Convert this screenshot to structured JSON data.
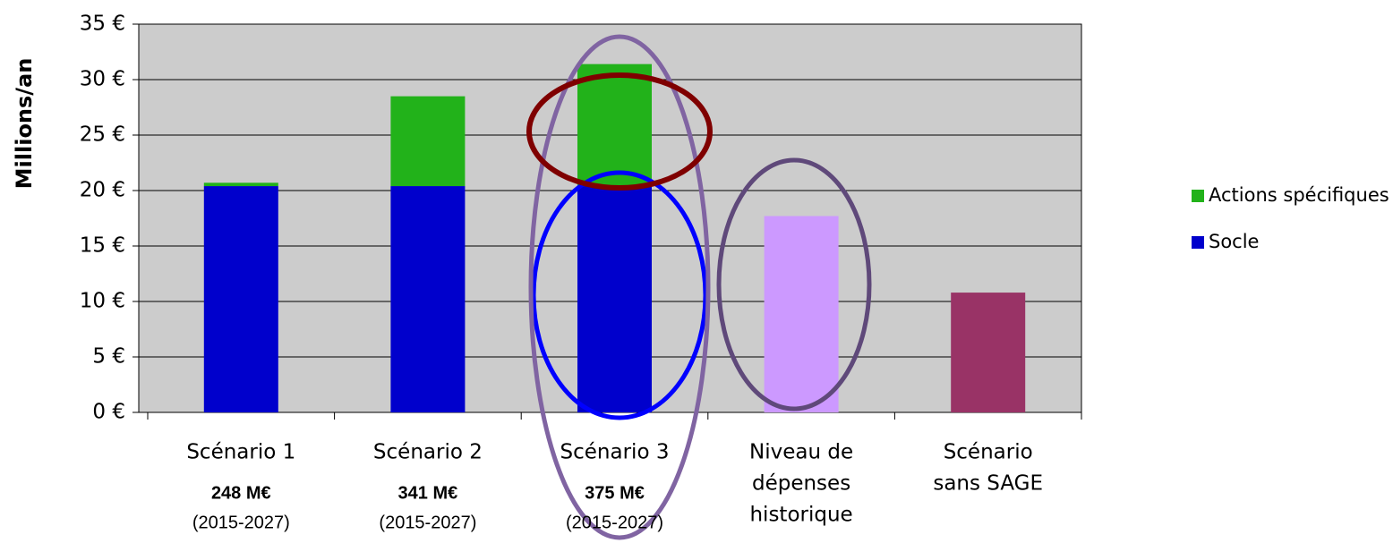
{
  "chart_data": {
    "type": "bar",
    "stacked": true,
    "y_label": "Millions/an",
    "categories": [
      [
        "Scénario 1"
      ],
      [
        "Scénario 2"
      ],
      [
        "Scénario 3"
      ],
      [
        "Niveau de",
        "dépenses",
        "historique"
      ],
      [
        "Scénario",
        "sans SAGE"
      ]
    ],
    "category_notes": [
      {
        "total": "248 M€",
        "period": "(2015-2027)"
      },
      {
        "total": "341 M€",
        "period": "(2015-2027)"
      },
      {
        "total": "375 M€",
        "period": "(2015-2027)"
      },
      null,
      null
    ],
    "series": [
      {
        "name": "Socle",
        "color": "#0000cc",
        "values": [
          20.4,
          20.4,
          20.4,
          null,
          null
        ]
      },
      {
        "name": "Actions spécifiques",
        "color": "#22b21a",
        "values": [
          0.3,
          8.1,
          11.0,
          null,
          null
        ]
      }
    ],
    "values": [
      null,
      null,
      null,
      17.7,
      10.8
    ],
    "colors": [
      null,
      null,
      null,
      "#cc99ff",
      "#993366"
    ],
    "ylim": [
      0,
      35
    ],
    "yticks": [
      {
        "value": 0,
        "label": "0 €"
      },
      {
        "value": 5,
        "label": "5 €"
      },
      {
        "value": 10,
        "label": "10 €"
      },
      {
        "value": 15,
        "label": "15 €"
      },
      {
        "value": 20,
        "label": "20 €"
      },
      {
        "value": 25,
        "label": "25 €"
      },
      {
        "value": 30,
        "label": "30 €"
      },
      {
        "value": 35,
        "label": "35 €"
      }
    ],
    "grid": true,
    "legend": "right"
  }
}
